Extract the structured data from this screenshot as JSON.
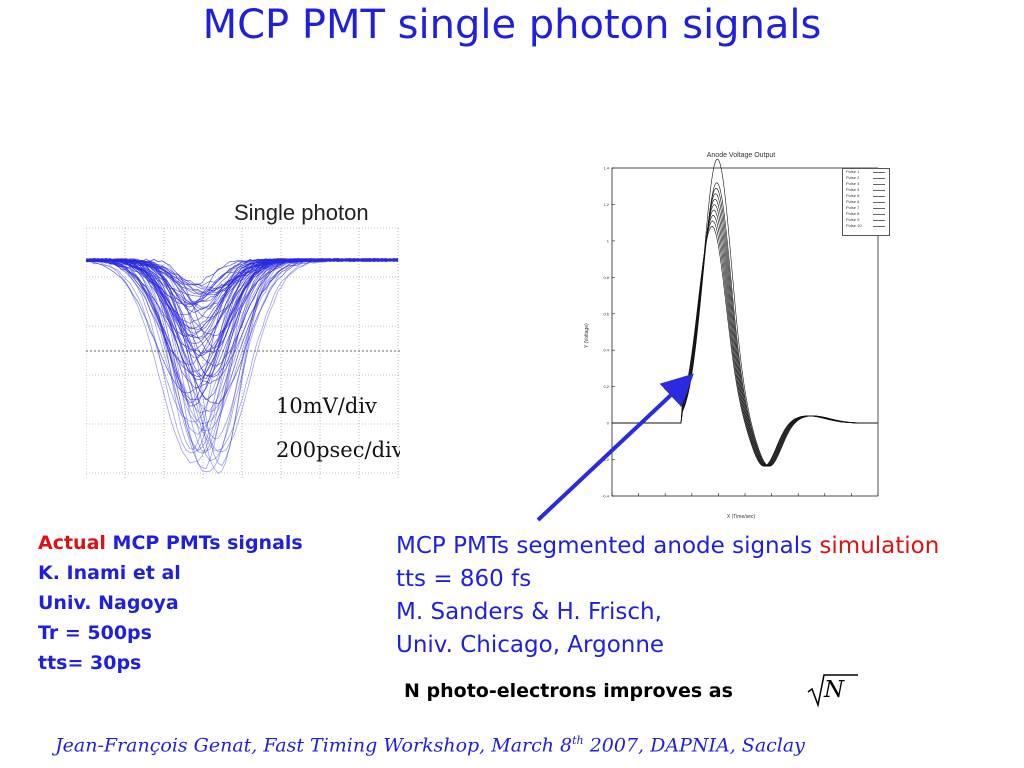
{
  "slide": {
    "title": "MCP PMT single photon signals"
  },
  "scope_figure": {
    "title": "Single photon",
    "vscale": "10mV/div",
    "hscale": "200psec/div",
    "trace_color": "#2a2ae0"
  },
  "sim_figure": {
    "title": "Anode Voltage Output",
    "xlabel": "X (Time/sec)",
    "ylabel": "Y (Voltage)",
    "legend": [
      "Pulse 1",
      "Pulse 2",
      "Pulse 3",
      "Pulse 4",
      "Pulse 5",
      "Pulse 6",
      "Pulse 7",
      "Pulse 8",
      "Pulse 9",
      "Pulse 10"
    ]
  },
  "left_info": {
    "actual_word": "Actual",
    "line1_rest": " MCP PMTs signals",
    "line2": "K. Inami et al",
    "line3": "Univ. Nagoya",
    "line4": "Tr = 500ps",
    "line5": "tts= 30ps"
  },
  "right_info": {
    "line1_start": "MCP PMTs segmented anode signals ",
    "simulation_word": "simulation",
    "line2": "tts  = 860 fs",
    "line3": "M. Sanders & H. Frisch,",
    "line4": "Univ. Chicago, Argonne"
  },
  "improves": {
    "text": "N photo-electrons improves as",
    "formula_var": "N"
  },
  "footer": {
    "text_a": "Jean-François  Genat,   Fast Timing Workshop, March 8",
    "sup": "th",
    "text_b": " 2007, DAPNIA, Saclay"
  },
  "colors": {
    "title_blue": "#1f1fe0",
    "highlight_red": "#e01010"
  }
}
